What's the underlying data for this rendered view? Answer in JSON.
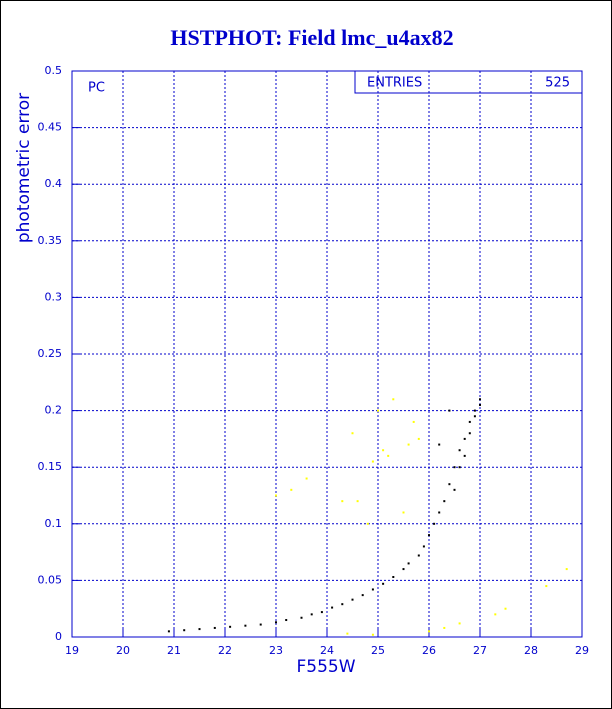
{
  "chart_data": {
    "type": "scatter",
    "title": "HSTPHOT: Field lmc_u4ax82",
    "x_label": "F555W",
    "y_label": "photometric error",
    "annotation": "PC",
    "entries": {
      "label": "ENTRIES",
      "value": 525
    },
    "xlim": [
      19,
      29
    ],
    "ylim": [
      0,
      0.5
    ],
    "xticks": [
      19,
      20,
      21,
      22,
      23,
      24,
      25,
      26,
      27,
      28,
      29
    ],
    "yticks": [
      0,
      0.05,
      0.1,
      0.15,
      0.2,
      0.25,
      0.3,
      0.35,
      0.4,
      0.45,
      0.5
    ],
    "grid": true,
    "series": [
      {
        "color": "#000000",
        "x": [
          20.9,
          21.2,
          21.5,
          21.8,
          22.1,
          22.4,
          22.7,
          23.0,
          23.2,
          23.5,
          23.7,
          23.9,
          24.1,
          24.3,
          24.5,
          24.7,
          24.9,
          25.1,
          25.3,
          25.5,
          25.6,
          25.8,
          25.9,
          26.0,
          26.1,
          26.2,
          26.3,
          26.4,
          26.5,
          26.5,
          26.6,
          26.6,
          26.7,
          26.7,
          26.8,
          26.8,
          26.9,
          26.9,
          27.0,
          27.0,
          26.4,
          26.2
        ],
        "values": [
          0.005,
          0.006,
          0.007,
          0.008,
          0.009,
          0.01,
          0.011,
          0.013,
          0.015,
          0.017,
          0.02,
          0.022,
          0.026,
          0.029,
          0.033,
          0.037,
          0.042,
          0.047,
          0.053,
          0.06,
          0.065,
          0.072,
          0.08,
          0.09,
          0.1,
          0.11,
          0.12,
          0.135,
          0.15,
          0.13,
          0.165,
          0.15,
          0.175,
          0.16,
          0.19,
          0.18,
          0.2,
          0.195,
          0.21,
          0.205,
          0.2,
          0.17
        ]
      },
      {
        "color": "#ffff00",
        "x": [
          23.0,
          23.3,
          23.6,
          24.3,
          24.5,
          24.6,
          24.8,
          24.9,
          25.0,
          25.2,
          25.3,
          25.5,
          25.6,
          25.8,
          26.0,
          26.3,
          26.6,
          27.3,
          27.5,
          28.3,
          28.7,
          24.4,
          24.9,
          25.1,
          25.7
        ],
        "values": [
          0.125,
          0.13,
          0.14,
          0.12,
          0.18,
          0.12,
          0.1,
          0.155,
          0.2,
          0.16,
          0.21,
          0.11,
          0.17,
          0.175,
          0.005,
          0.008,
          0.012,
          0.02,
          0.025,
          0.045,
          0.06,
          0.003,
          0.002,
          0.165,
          0.19
        ]
      }
    ]
  }
}
